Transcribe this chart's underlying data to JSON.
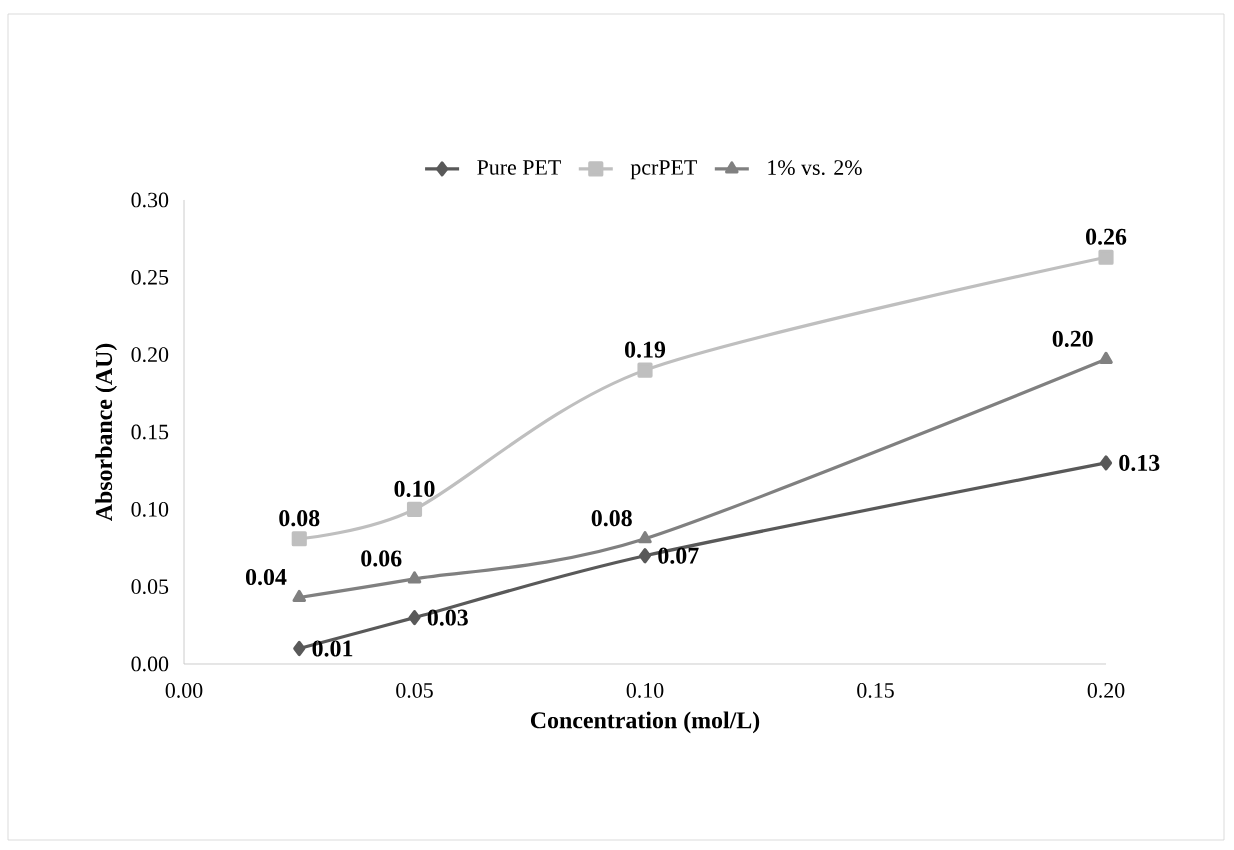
{
  "chart_data": {
    "type": "line",
    "xlabel": "Concentration (mol/L)",
    "ylabel": "Absorbance (AU)",
    "x": [
      0.025,
      0.05,
      0.1,
      0.2
    ],
    "series": [
      {
        "name": "Pure PET",
        "color": "#595959",
        "marker": "diamond",
        "values": [
          0.01,
          0.03,
          0.07,
          0.13
        ],
        "value_labels": [
          "0.01",
          "0.03",
          "0.07",
          "0.13"
        ]
      },
      {
        "name": "pcrPET",
        "color": "#bfbfbf",
        "marker": "square",
        "values": [
          0.081,
          0.1,
          0.19,
          0.263
        ],
        "value_labels": [
          "0.08",
          "0.10",
          "0.19",
          "0.26"
        ]
      },
      {
        "name": "1% vs. 2%",
        "color": "#808080",
        "marker": "triangle",
        "values": [
          0.043,
          0.055,
          0.081,
          0.197
        ],
        "value_labels": [
          "0.04",
          "0.06",
          "0.08",
          "0.20"
        ]
      }
    ],
    "xlim": [
      0,
      0.2
    ],
    "ylim": [
      0,
      0.3
    ],
    "xticks": [
      {
        "value": 0,
        "label": "0.00"
      },
      {
        "value": 0.05,
        "label": "0.05"
      },
      {
        "value": 0.1,
        "label": "0.10"
      },
      {
        "value": 0.15,
        "label": "0.15"
      },
      {
        "value": 0.2,
        "label": "0.20"
      }
    ],
    "yticks": [
      {
        "value": 0,
        "label": "0.00"
      },
      {
        "value": 0.05,
        "label": "0.05"
      },
      {
        "value": 0.1,
        "label": "0.10"
      },
      {
        "value": 0.15,
        "label": "0.15"
      },
      {
        "value": 0.2,
        "label": "0.20"
      },
      {
        "value": 0.25,
        "label": "0.25"
      },
      {
        "value": 0.3,
        "label": "0.30"
      }
    ],
    "grid": false,
    "legend": "top",
    "line_style": "solid"
  }
}
